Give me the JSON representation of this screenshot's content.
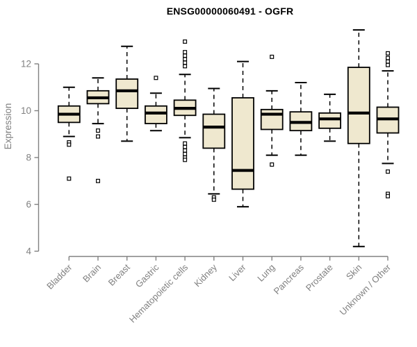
{
  "chart_data": {
    "type": "boxplot",
    "title": "ENSG00000060491 - OGFR",
    "ylabel": "Expression",
    "xlabel": "",
    "ylim": [
      3.7,
      13.9
    ],
    "yticks": [
      4,
      6,
      8,
      10,
      12
    ],
    "grid": false,
    "legend": null,
    "categories": [
      "Bladder",
      "Brain",
      "Breast",
      "Gastric",
      "Hematopoietic cells",
      "Kidney",
      "Liver",
      "Lung",
      "Pancreas",
      "Prostate",
      "Skin",
      "Unknown / Other"
    ],
    "boxes": [
      {
        "category": "Bladder",
        "whisker_low": 8.9,
        "q1": 9.5,
        "median": 9.85,
        "q3": 10.2,
        "whisker_high": 11.0,
        "outliers": [
          8.65,
          8.55,
          7.1
        ]
      },
      {
        "category": "Brain",
        "whisker_low": 9.45,
        "q1": 10.3,
        "median": 10.55,
        "q3": 10.85,
        "whisker_high": 11.4,
        "outliers": [
          9.15,
          8.9,
          7.0
        ]
      },
      {
        "category": "Breast",
        "whisker_low": 8.7,
        "q1": 10.1,
        "median": 10.85,
        "q3": 11.35,
        "whisker_high": 12.75,
        "outliers": []
      },
      {
        "category": "Gastric",
        "whisker_low": 9.15,
        "q1": 9.45,
        "median": 9.9,
        "q3": 10.2,
        "whisker_high": 10.75,
        "outliers": [
          11.4
        ]
      },
      {
        "category": "Hematopoietic cells",
        "whisker_low": 8.85,
        "q1": 9.8,
        "median": 10.1,
        "q3": 10.45,
        "whisker_high": 11.55,
        "outliers": [
          12.95,
          12.5,
          12.35,
          12.2,
          12.05,
          11.9,
          8.6,
          8.45,
          8.3,
          8.15,
          8.0,
          7.9
        ]
      },
      {
        "category": "Kidney",
        "whisker_low": 6.45,
        "q1": 8.4,
        "median": 9.3,
        "q3": 9.85,
        "whisker_high": 10.95,
        "outliers": [
          6.3,
          6.2
        ]
      },
      {
        "category": "Liver",
        "whisker_low": 5.9,
        "q1": 6.65,
        "median": 7.45,
        "q3": 10.55,
        "whisker_high": 12.1,
        "outliers": []
      },
      {
        "category": "Lung",
        "whisker_low": 8.1,
        "q1": 9.2,
        "median": 9.85,
        "q3": 10.05,
        "whisker_high": 10.85,
        "outliers": [
          12.3,
          7.7
        ]
      },
      {
        "category": "Pancreas",
        "whisker_low": 8.1,
        "q1": 9.15,
        "median": 9.5,
        "q3": 9.95,
        "whisker_high": 11.2,
        "outliers": []
      },
      {
        "category": "Prostate",
        "whisker_low": 8.7,
        "q1": 9.25,
        "median": 9.65,
        "q3": 9.9,
        "whisker_high": 10.7,
        "outliers": []
      },
      {
        "category": "Skin",
        "whisker_low": 4.2,
        "q1": 8.6,
        "median": 9.9,
        "q3": 11.85,
        "whisker_high": 13.45,
        "outliers": []
      },
      {
        "category": "Unknown / Other",
        "whisker_low": 7.75,
        "q1": 9.05,
        "median": 9.65,
        "q3": 10.15,
        "whisker_high": 11.7,
        "outliers": [
          12.45,
          12.25,
          12.1,
          11.95,
          7.4,
          6.45,
          6.35
        ]
      }
    ],
    "colors": {
      "box_fill": "#EFE8CF",
      "box_stroke": "#000000",
      "median": "#000000",
      "whisker": "#000000",
      "outlier_fill": "#FFFFFF",
      "axis": "#808080",
      "tick_label": "#808080",
      "title": "#000000",
      "background": "#FFFFFF"
    }
  }
}
